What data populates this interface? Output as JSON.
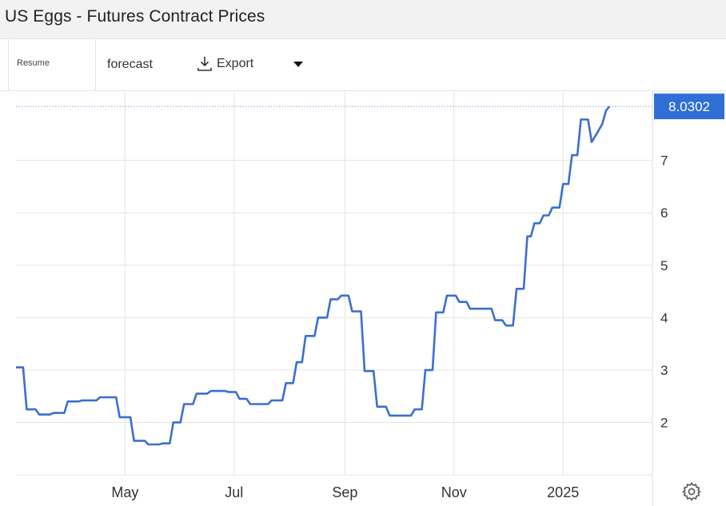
{
  "header": {
    "title": "US Eggs - Futures Contract Prices"
  },
  "toolbar": {
    "resume_label": "Resume",
    "forecast_label": "forecast",
    "export_label": "Export",
    "export_icon": "download-icon",
    "dropdown_icon": "caret-down-icon"
  },
  "settings": {
    "icon": "gear-icon"
  },
  "chart_data": {
    "type": "line",
    "title": "US Eggs - Futures Contract Prices",
    "xlabel": "",
    "ylabel": "",
    "x_ticks": [
      "May",
      "Jul",
      "Sep",
      "Nov",
      "2025"
    ],
    "y_ticks": [
      2,
      3,
      4,
      5,
      6,
      7
    ],
    "ylim": [
      1.0,
      8.2
    ],
    "xlim": [
      "2024-03-01",
      "2025-02-20"
    ],
    "grid": true,
    "legend": "none",
    "current_value": "8.0302",
    "line_color": "#3a6fd0",
    "series": [
      {
        "points": [
          [
            "2024-03-01",
            3.05
          ],
          [
            "2024-03-05",
            3.05
          ],
          [
            "2024-03-07",
            2.25
          ],
          [
            "2024-03-12",
            2.25
          ],
          [
            "2024-03-14",
            2.15
          ],
          [
            "2024-03-20",
            2.15
          ],
          [
            "2024-03-22",
            2.18
          ],
          [
            "2024-03-28",
            2.18
          ],
          [
            "2024-03-30",
            2.4
          ],
          [
            "2024-04-05",
            2.4
          ],
          [
            "2024-04-07",
            2.42
          ],
          [
            "2024-04-15",
            2.42
          ],
          [
            "2024-04-17",
            2.48
          ],
          [
            "2024-04-26",
            2.48
          ],
          [
            "2024-04-28",
            2.1
          ],
          [
            "2024-05-04",
            2.1
          ],
          [
            "2024-05-06",
            1.65
          ],
          [
            "2024-05-12",
            1.65
          ],
          [
            "2024-05-14",
            1.58
          ],
          [
            "2024-05-20",
            1.58
          ],
          [
            "2024-05-22",
            1.6
          ],
          [
            "2024-05-26",
            1.6
          ],
          [
            "2024-05-28",
            2.0
          ],
          [
            "2024-06-01",
            2.0
          ],
          [
            "2024-06-03",
            2.35
          ],
          [
            "2024-06-08",
            2.35
          ],
          [
            "2024-06-10",
            2.55
          ],
          [
            "2024-06-16",
            2.55
          ],
          [
            "2024-06-18",
            2.6
          ],
          [
            "2024-06-26",
            2.6
          ],
          [
            "2024-06-28",
            2.58
          ],
          [
            "2024-07-02",
            2.58
          ],
          [
            "2024-07-04",
            2.45
          ],
          [
            "2024-07-08",
            2.45
          ],
          [
            "2024-07-10",
            2.35
          ],
          [
            "2024-07-20",
            2.35
          ],
          [
            "2024-07-22",
            2.42
          ],
          [
            "2024-07-28",
            2.42
          ],
          [
            "2024-07-30",
            2.75
          ],
          [
            "2024-08-03",
            2.75
          ],
          [
            "2024-08-05",
            3.15
          ],
          [
            "2024-08-08",
            3.15
          ],
          [
            "2024-08-10",
            3.65
          ],
          [
            "2024-08-15",
            3.65
          ],
          [
            "2024-08-17",
            4.0
          ],
          [
            "2024-08-22",
            4.0
          ],
          [
            "2024-08-24",
            4.35
          ],
          [
            "2024-08-28",
            4.35
          ],
          [
            "2024-08-30",
            4.42
          ],
          [
            "2024-09-03",
            4.42
          ],
          [
            "2024-09-05",
            4.12
          ],
          [
            "2024-09-10",
            4.12
          ],
          [
            "2024-09-12",
            2.98
          ],
          [
            "2024-09-17",
            2.98
          ],
          [
            "2024-09-19",
            2.3
          ],
          [
            "2024-09-24",
            2.3
          ],
          [
            "2024-09-26",
            2.13
          ],
          [
            "2024-10-08",
            2.13
          ],
          [
            "2024-10-10",
            2.25
          ],
          [
            "2024-10-14",
            2.25
          ],
          [
            "2024-10-16",
            3.0
          ],
          [
            "2024-10-20",
            3.0
          ],
          [
            "2024-10-22",
            4.1
          ],
          [
            "2024-10-26",
            4.1
          ],
          [
            "2024-10-28",
            4.42
          ],
          [
            "2024-11-02",
            4.42
          ],
          [
            "2024-11-04",
            4.3
          ],
          [
            "2024-11-08",
            4.3
          ],
          [
            "2024-11-10",
            4.17
          ],
          [
            "2024-11-22",
            4.17
          ],
          [
            "2024-11-24",
            3.95
          ],
          [
            "2024-11-28",
            3.95
          ],
          [
            "2024-11-30",
            3.85
          ],
          [
            "2024-12-04",
            3.85
          ],
          [
            "2024-12-06",
            4.55
          ],
          [
            "2024-12-10",
            4.55
          ],
          [
            "2024-12-12",
            5.55
          ],
          [
            "2024-12-14",
            5.55
          ],
          [
            "2024-12-16",
            5.8
          ],
          [
            "2024-12-19",
            5.8
          ],
          [
            "2024-12-21",
            5.95
          ],
          [
            "2024-12-24",
            5.95
          ],
          [
            "2024-12-26",
            6.1
          ],
          [
            "2024-12-30",
            6.1
          ],
          [
            "2025-01-01",
            6.55
          ],
          [
            "2025-01-04",
            6.55
          ],
          [
            "2025-01-06",
            7.1
          ],
          [
            "2025-01-09",
            7.1
          ],
          [
            "2025-01-11",
            7.78
          ],
          [
            "2025-01-15",
            7.78
          ],
          [
            "2025-01-17",
            7.35
          ],
          [
            "2025-01-20",
            7.52
          ],
          [
            "2025-01-23",
            7.7
          ],
          [
            "2025-01-25",
            7.95
          ],
          [
            "2025-01-27",
            8.03
          ]
        ]
      }
    ]
  }
}
